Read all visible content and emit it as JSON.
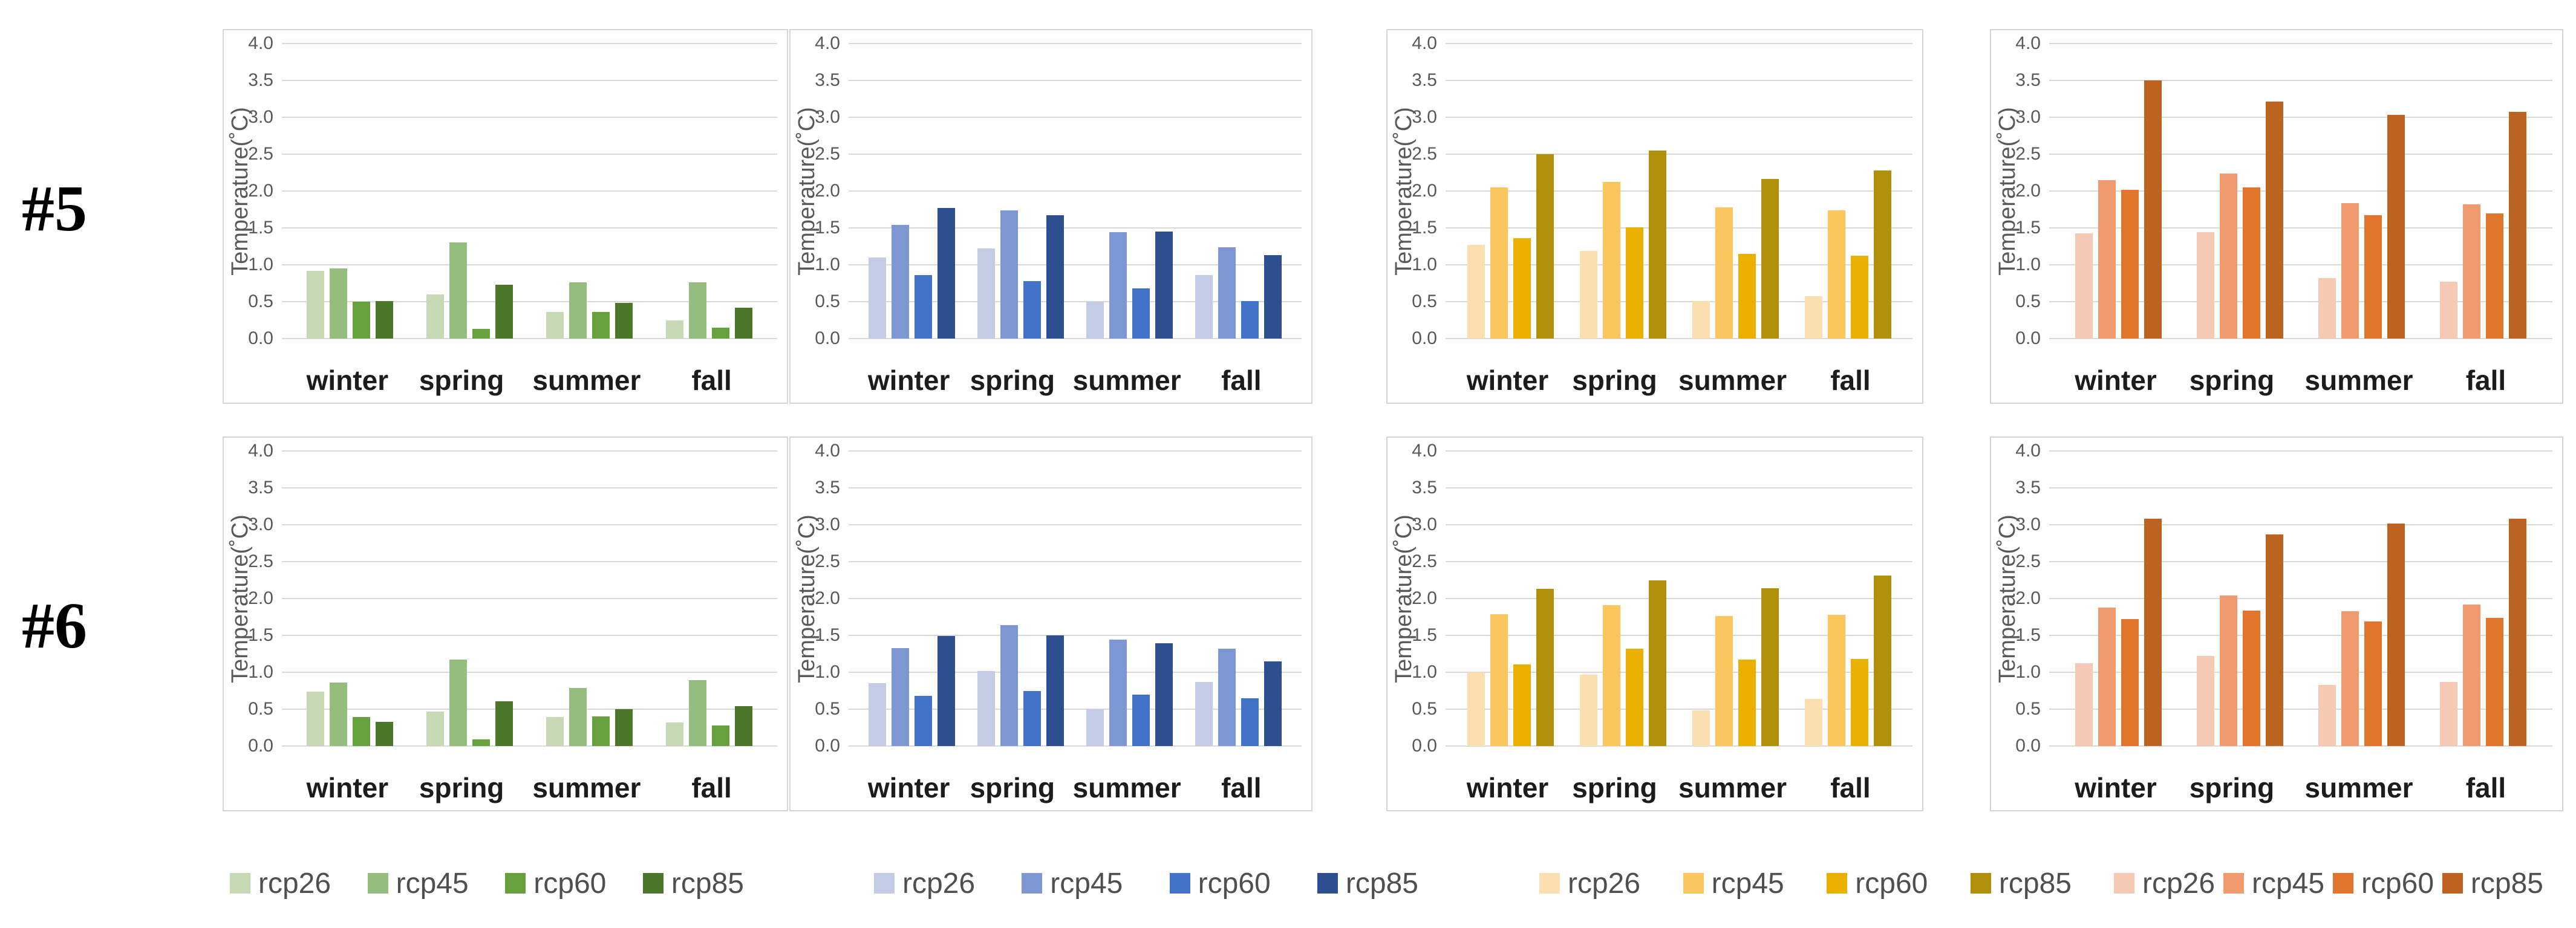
{
  "figure": {
    "background": "#ffffff",
    "rows": [
      {
        "label": "#5"
      },
      {
        "label": "#6"
      }
    ],
    "categories": [
      "winter",
      "spring",
      "summer",
      "fall"
    ],
    "series_names": [
      "rcp26",
      "rcp45",
      "rcp60",
      "rcp85"
    ],
    "palettes": {
      "green": [
        "#c6d9b4",
        "#94bd7e",
        "#66a13d",
        "#4c772b"
      ],
      "blue": [
        "#c3cce4",
        "#7d97d3",
        "#4273c8",
        "#2d4f8e"
      ],
      "yellow": [
        "#fbdfb1",
        "#fcc65e",
        "#e9b000",
        "#b0900a"
      ],
      "orange": [
        "#f6c9b5",
        "#f09a70",
        "#e2752c",
        "#bd6321"
      ]
    },
    "axis": {
      "ylabel": "Temperature(˚C)",
      "yticks": [
        "4.0",
        "3.5",
        "3.0",
        "2.5",
        "2.0",
        "1.5",
        "1.0",
        "0.5",
        "0.0"
      ],
      "ylim": [
        0,
        4
      ],
      "ytick_step": 0.5,
      "grid": true
    }
  },
  "chart_data": [
    {
      "type": "bar",
      "row": "#5",
      "palette": "green",
      "categories": [
        "winter",
        "spring",
        "summer",
        "fall"
      ],
      "series": [
        {
          "name": "rcp26",
          "values": [
            0.92,
            0.6,
            0.36,
            0.25
          ]
        },
        {
          "name": "rcp45",
          "values": [
            0.95,
            1.3,
            0.76,
            0.76
          ]
        },
        {
          "name": "rcp60",
          "values": [
            0.5,
            0.13,
            0.36,
            0.15
          ]
        },
        {
          "name": "rcp85",
          "values": [
            0.51,
            0.73,
            0.48,
            0.42
          ]
        }
      ],
      "ylabel": "Temperature(˚C)",
      "ylim": [
        0,
        4
      ]
    },
    {
      "type": "bar",
      "row": "#5",
      "palette": "blue",
      "categories": [
        "winter",
        "spring",
        "summer",
        "fall"
      ],
      "series": [
        {
          "name": "rcp26",
          "values": [
            1.1,
            1.22,
            0.5,
            0.86
          ]
        },
        {
          "name": "rcp45",
          "values": [
            1.54,
            1.74,
            1.44,
            1.24
          ]
        },
        {
          "name": "rcp60",
          "values": [
            0.86,
            0.78,
            0.68,
            0.51
          ]
        },
        {
          "name": "rcp85",
          "values": [
            1.77,
            1.67,
            1.45,
            1.13
          ]
        }
      ],
      "ylabel": "Temperature(˚C)",
      "ylim": [
        0,
        4
      ]
    },
    {
      "type": "bar",
      "row": "#5",
      "palette": "yellow",
      "categories": [
        "winter",
        "spring",
        "summer",
        "fall"
      ],
      "series": [
        {
          "name": "rcp26",
          "values": [
            1.27,
            1.19,
            0.51,
            0.57
          ]
        },
        {
          "name": "rcp45",
          "values": [
            2.05,
            2.12,
            1.78,
            1.74
          ]
        },
        {
          "name": "rcp60",
          "values": [
            1.36,
            1.51,
            1.15,
            1.12
          ]
        },
        {
          "name": "rcp85",
          "values": [
            2.5,
            2.55,
            2.16,
            2.28
          ]
        }
      ],
      "ylabel": "Temperature(˚C)",
      "ylim": [
        0,
        4
      ]
    },
    {
      "type": "bar",
      "row": "#5",
      "palette": "orange",
      "categories": [
        "winter",
        "spring",
        "summer",
        "fall"
      ],
      "series": [
        {
          "name": "rcp26",
          "values": [
            1.43,
            1.44,
            0.82,
            0.77
          ]
        },
        {
          "name": "rcp45",
          "values": [
            2.15,
            2.24,
            1.84,
            1.82
          ]
        },
        {
          "name": "rcp60",
          "values": [
            2.02,
            2.05,
            1.67,
            1.7
          ]
        },
        {
          "name": "rcp85",
          "values": [
            3.5,
            3.21,
            3.03,
            3.07
          ]
        }
      ],
      "ylabel": "Temperature(˚C)",
      "ylim": [
        0,
        4
      ]
    },
    {
      "type": "bar",
      "row": "#6",
      "palette": "green",
      "categories": [
        "winter",
        "spring",
        "summer",
        "fall"
      ],
      "series": [
        {
          "name": "rcp26",
          "values": [
            0.74,
            0.47,
            0.39,
            0.32
          ]
        },
        {
          "name": "rcp45",
          "values": [
            0.86,
            1.17,
            0.79,
            0.89
          ]
        },
        {
          "name": "rcp60",
          "values": [
            0.39,
            0.09,
            0.4,
            0.28
          ]
        },
        {
          "name": "rcp85",
          "values": [
            0.33,
            0.61,
            0.5,
            0.54
          ]
        }
      ],
      "ylabel": "Temperature(˚C)",
      "ylim": [
        0,
        4
      ]
    },
    {
      "type": "bar",
      "row": "#6",
      "palette": "blue",
      "categories": [
        "winter",
        "spring",
        "summer",
        "fall"
      ],
      "series": [
        {
          "name": "rcp26",
          "values": [
            0.85,
            1.02,
            0.5,
            0.87
          ]
        },
        {
          "name": "rcp45",
          "values": [
            1.33,
            1.64,
            1.44,
            1.32
          ]
        },
        {
          "name": "rcp60",
          "values": [
            0.68,
            0.75,
            0.7,
            0.65
          ]
        },
        {
          "name": "rcp85",
          "values": [
            1.49,
            1.5,
            1.39,
            1.15
          ]
        }
      ],
      "ylabel": "Temperature(˚C)",
      "ylim": [
        0,
        4
      ]
    },
    {
      "type": "bar",
      "row": "#6",
      "palette": "yellow",
      "categories": [
        "winter",
        "spring",
        "summer",
        "fall"
      ],
      "series": [
        {
          "name": "rcp26",
          "values": [
            1.0,
            0.97,
            0.48,
            0.64
          ]
        },
        {
          "name": "rcp45",
          "values": [
            1.79,
            1.91,
            1.76,
            1.78
          ]
        },
        {
          "name": "rcp60",
          "values": [
            1.11,
            1.32,
            1.17,
            1.18
          ]
        },
        {
          "name": "rcp85",
          "values": [
            2.13,
            2.25,
            2.14,
            2.31
          ]
        }
      ],
      "ylabel": "Temperature(˚C)",
      "ylim": [
        0,
        4
      ]
    },
    {
      "type": "bar",
      "row": "#6",
      "palette": "orange",
      "categories": [
        "winter",
        "spring",
        "summer",
        "fall"
      ],
      "series": [
        {
          "name": "rcp26",
          "values": [
            1.12,
            1.22,
            0.83,
            0.87
          ]
        },
        {
          "name": "rcp45",
          "values": [
            1.88,
            2.04,
            1.83,
            1.92
          ]
        },
        {
          "name": "rcp60",
          "values": [
            1.72,
            1.84,
            1.69,
            1.74
          ]
        },
        {
          "name": "rcp85",
          "values": [
            3.08,
            2.87,
            3.02,
            3.08
          ]
        }
      ],
      "ylabel": "Temperature(˚C)",
      "ylim": [
        0,
        4
      ]
    }
  ],
  "legends": [
    {
      "palette": "green",
      "labels": [
        "rcp26",
        "rcp45",
        "rcp60",
        "rcp85"
      ]
    },
    {
      "palette": "blue",
      "labels": [
        "rcp26",
        "rcp45",
        "rcp60",
        "rcp85"
      ]
    },
    {
      "palette": "yellow",
      "labels": [
        "rcp26",
        "rcp45",
        "rcp60",
        "rcp85"
      ]
    },
    {
      "palette": "orange",
      "labels": [
        "rcp26",
        "rcp45",
        "rcp60",
        "rcp85"
      ]
    }
  ]
}
